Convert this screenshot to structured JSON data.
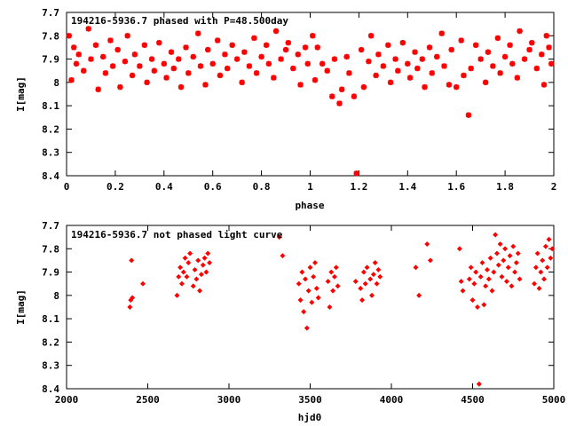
{
  "chart_data": [
    {
      "type": "scatter",
      "title": "194216-5936.7 phased with P=48.500day",
      "xlabel": "phase",
      "ylabel": "I[mag]",
      "xlim": [
        0,
        2
      ],
      "ylim": [
        7.7,
        8.4
      ],
      "y_inverted": true,
      "marker": "star",
      "grid": false,
      "color": "#ff0000",
      "x_ticks": [
        "0",
        "0.2",
        "0.4",
        "0.6",
        "0.8",
        "1",
        "1.2",
        "1.4",
        "1.6",
        "1.8",
        "2"
      ],
      "y_ticks": [
        "7.7",
        "7.8",
        "7.9",
        "8",
        "8.1",
        "8.2",
        "8.3",
        "8.4"
      ],
      "x_tick_values": [
        0,
        0.2,
        0.4,
        0.6,
        0.8,
        1,
        1.2,
        1.4,
        1.6,
        1.8,
        2
      ],
      "y_tick_values": [
        7.7,
        7.8,
        7.9,
        8.0,
        8.1,
        8.2,
        8.3,
        8.4
      ],
      "points": [
        [
          0.01,
          7.8
        ],
        [
          0.02,
          7.99
        ],
        [
          0.03,
          7.85
        ],
        [
          0.04,
          7.92
        ],
        [
          0.05,
          7.88
        ],
        [
          0.07,
          7.95
        ],
        [
          0.09,
          7.77
        ],
        [
          0.1,
          7.9
        ],
        [
          0.12,
          7.84
        ],
        [
          0.13,
          8.03
        ],
        [
          0.15,
          7.89
        ],
        [
          0.16,
          7.96
        ],
        [
          0.18,
          7.82
        ],
        [
          0.19,
          7.93
        ],
        [
          0.21,
          7.86
        ],
        [
          0.22,
          8.02
        ],
        [
          0.24,
          7.91
        ],
        [
          0.25,
          7.8
        ],
        [
          0.27,
          7.97
        ],
        [
          0.28,
          7.88
        ],
        [
          0.3,
          7.93
        ],
        [
          0.32,
          7.84
        ],
        [
          0.33,
          8.0
        ],
        [
          0.35,
          7.9
        ],
        [
          0.36,
          7.95
        ],
        [
          0.38,
          7.83
        ],
        [
          0.4,
          7.92
        ],
        [
          0.41,
          7.98
        ],
        [
          0.43,
          7.87
        ],
        [
          0.44,
          7.94
        ],
        [
          0.46,
          7.9
        ],
        [
          0.47,
          8.02
        ],
        [
          0.49,
          7.85
        ],
        [
          0.5,
          7.96
        ],
        [
          0.52,
          7.89
        ],
        [
          0.54,
          7.79
        ],
        [
          0.55,
          7.93
        ],
        [
          0.57,
          8.01
        ],
        [
          0.58,
          7.86
        ],
        [
          0.6,
          7.92
        ],
        [
          0.62,
          7.82
        ],
        [
          0.63,
          7.97
        ],
        [
          0.65,
          7.88
        ],
        [
          0.66,
          7.94
        ],
        [
          0.68,
          7.84
        ],
        [
          0.7,
          7.9
        ],
        [
          0.72,
          8.0
        ],
        [
          0.73,
          7.87
        ],
        [
          0.75,
          7.93
        ],
        [
          0.77,
          7.81
        ],
        [
          0.78,
          7.96
        ],
        [
          0.8,
          7.89
        ],
        [
          0.82,
          7.84
        ],
        [
          0.83,
          7.92
        ],
        [
          0.85,
          7.98
        ],
        [
          0.86,
          7.78
        ],
        [
          0.88,
          7.9
        ],
        [
          0.9,
          7.86
        ],
        [
          0.91,
          7.83
        ],
        [
          0.93,
          7.94
        ],
        [
          0.95,
          7.88
        ],
        [
          0.96,
          8.01
        ],
        [
          0.98,
          7.85
        ],
        [
          0.99,
          7.92
        ],
        [
          1.01,
          7.8
        ],
        [
          1.02,
          7.99
        ],
        [
          1.03,
          7.85
        ],
        [
          1.05,
          7.92
        ],
        [
          1.07,
          7.95
        ],
        [
          1.09,
          8.06
        ],
        [
          1.1,
          7.9
        ],
        [
          1.12,
          8.09
        ],
        [
          1.13,
          8.03
        ],
        [
          1.15,
          7.89
        ],
        [
          1.16,
          7.96
        ],
        [
          1.18,
          8.06
        ],
        [
          1.19,
          8.39
        ],
        [
          1.21,
          7.86
        ],
        [
          1.22,
          8.02
        ],
        [
          1.24,
          7.91
        ],
        [
          1.25,
          7.8
        ],
        [
          1.27,
          7.97
        ],
        [
          1.28,
          7.88
        ],
        [
          1.3,
          7.93
        ],
        [
          1.32,
          7.84
        ],
        [
          1.33,
          8.0
        ],
        [
          1.35,
          7.9
        ],
        [
          1.36,
          7.95
        ],
        [
          1.38,
          7.83
        ],
        [
          1.4,
          7.92
        ],
        [
          1.41,
          7.98
        ],
        [
          1.43,
          7.87
        ],
        [
          1.44,
          7.94
        ],
        [
          1.46,
          7.9
        ],
        [
          1.47,
          8.02
        ],
        [
          1.49,
          7.85
        ],
        [
          1.5,
          7.96
        ],
        [
          1.52,
          7.89
        ],
        [
          1.54,
          7.79
        ],
        [
          1.55,
          7.93
        ],
        [
          1.57,
          8.01
        ],
        [
          1.58,
          7.86
        ],
        [
          1.6,
          8.02
        ],
        [
          1.62,
          7.82
        ],
        [
          1.63,
          7.97
        ],
        [
          1.65,
          8.14
        ],
        [
          1.66,
          7.94
        ],
        [
          1.68,
          7.84
        ],
        [
          1.7,
          7.9
        ],
        [
          1.72,
          8.0
        ],
        [
          1.73,
          7.87
        ],
        [
          1.75,
          7.93
        ],
        [
          1.77,
          7.81
        ],
        [
          1.78,
          7.96
        ],
        [
          1.8,
          7.89
        ],
        [
          1.82,
          7.84
        ],
        [
          1.83,
          7.92
        ],
        [
          1.85,
          7.98
        ],
        [
          1.86,
          7.78
        ],
        [
          1.88,
          7.9
        ],
        [
          1.9,
          7.86
        ],
        [
          1.91,
          7.83
        ],
        [
          1.93,
          7.94
        ],
        [
          1.95,
          7.88
        ],
        [
          1.96,
          8.01
        ],
        [
          1.98,
          7.85
        ],
        [
          1.99,
          7.92
        ],
        [
          1.97,
          7.8
        ]
      ]
    },
    {
      "type": "scatter",
      "title": "194216-5936.7 not phased light curve",
      "xlabel": "hjd0",
      "ylabel": "I[mag]",
      "xlim": [
        2000,
        5000
      ],
      "ylim": [
        7.7,
        8.4
      ],
      "y_inverted": true,
      "marker": "diamond",
      "grid": false,
      "color": "#ff0000",
      "x_ticks": [
        "2000",
        "2500",
        "3000",
        "3500",
        "4000",
        "4500",
        "5000"
      ],
      "y_ticks": [
        "7.7",
        "7.8",
        "7.9",
        "8",
        "8.1",
        "8.2",
        "8.3",
        "8.4"
      ],
      "x_tick_values": [
        2000,
        2500,
        3000,
        3500,
        4000,
        4500,
        5000
      ],
      "y_tick_values": [
        7.7,
        7.8,
        7.9,
        8.0,
        8.1,
        8.2,
        8.3,
        8.4
      ],
      "points": [
        [
          2390,
          8.05
        ],
        [
          2395,
          8.02
        ],
        [
          2400,
          7.85
        ],
        [
          2405,
          8.01
        ],
        [
          2470,
          7.95
        ],
        [
          2680,
          8.0
        ],
        [
          2690,
          7.92
        ],
        [
          2700,
          7.88
        ],
        [
          2710,
          7.95
        ],
        [
          2720,
          7.9
        ],
        [
          2730,
          7.84
        ],
        [
          2740,
          7.92
        ],
        [
          2750,
          7.86
        ],
        [
          2760,
          7.82
        ],
        [
          2780,
          7.96
        ],
        [
          2790,
          7.89
        ],
        [
          2800,
          7.93
        ],
        [
          2810,
          7.85
        ],
        [
          2820,
          7.98
        ],
        [
          2830,
          7.91
        ],
        [
          2840,
          7.87
        ],
        [
          2850,
          7.84
        ],
        [
          2860,
          7.9
        ],
        [
          2870,
          7.82
        ],
        [
          2880,
          7.86
        ],
        [
          3310,
          7.75
        ],
        [
          3330,
          7.83
        ],
        [
          3430,
          7.95
        ],
        [
          3440,
          8.02
        ],
        [
          3450,
          7.9
        ],
        [
          3460,
          8.07
        ],
        [
          3470,
          7.93
        ],
        [
          3480,
          8.14
        ],
        [
          3490,
          7.98
        ],
        [
          3500,
          7.88
        ],
        [
          3510,
          8.03
        ],
        [
          3520,
          7.92
        ],
        [
          3530,
          7.86
        ],
        [
          3540,
          7.97
        ],
        [
          3550,
          8.01
        ],
        [
          3610,
          7.94
        ],
        [
          3620,
          8.05
        ],
        [
          3630,
          7.9
        ],
        [
          3640,
          7.98
        ],
        [
          3650,
          7.92
        ],
        [
          3660,
          7.88
        ],
        [
          3670,
          7.96
        ],
        [
          3780,
          7.94
        ],
        [
          3810,
          7.97
        ],
        [
          3820,
          8.02
        ],
        [
          3830,
          7.9
        ],
        [
          3840,
          7.95
        ],
        [
          3850,
          7.88
        ],
        [
          3870,
          7.93
        ],
        [
          3880,
          8.0
        ],
        [
          3890,
          7.91
        ],
        [
          3900,
          7.86
        ],
        [
          3910,
          7.95
        ],
        [
          3920,
          7.89
        ],
        [
          3930,
          7.92
        ],
        [
          4150,
          7.88
        ],
        [
          4170,
          8.0
        ],
        [
          4220,
          7.78
        ],
        [
          4240,
          7.85
        ],
        [
          4420,
          7.8
        ],
        [
          4430,
          7.94
        ],
        [
          4440,
          7.98
        ],
        [
          4480,
          7.93
        ],
        [
          4490,
          7.88
        ],
        [
          4500,
          8.02
        ],
        [
          4510,
          7.95
        ],
        [
          4520,
          7.9
        ],
        [
          4530,
          8.05
        ],
        [
          4540,
          8.38
        ],
        [
          4550,
          7.92
        ],
        [
          4560,
          7.86
        ],
        [
          4570,
          8.04
        ],
        [
          4580,
          7.96
        ],
        [
          4590,
          7.89
        ],
        [
          4600,
          7.93
        ],
        [
          4610,
          7.84
        ],
        [
          4620,
          7.98
        ],
        [
          4630,
          7.9
        ],
        [
          4640,
          7.74
        ],
        [
          4650,
          7.82
        ],
        [
          4660,
          7.87
        ],
        [
          4670,
          7.78
        ],
        [
          4680,
          7.92
        ],
        [
          4690,
          7.85
        ],
        [
          4700,
          7.8
        ],
        [
          4710,
          7.94
        ],
        [
          4720,
          7.88
        ],
        [
          4730,
          7.83
        ],
        [
          4740,
          7.96
        ],
        [
          4750,
          7.79
        ],
        [
          4760,
          7.9
        ],
        [
          4770,
          7.86
        ],
        [
          4780,
          7.82
        ],
        [
          4790,
          7.93
        ],
        [
          4880,
          7.95
        ],
        [
          4890,
          7.88
        ],
        [
          4900,
          7.82
        ],
        [
          4910,
          7.97
        ],
        [
          4920,
          7.9
        ],
        [
          4930,
          7.85
        ],
        [
          4940,
          7.93
        ],
        [
          4950,
          7.79
        ],
        [
          4960,
          7.88
        ],
        [
          4970,
          7.76
        ],
        [
          4980,
          7.84
        ],
        [
          4990,
          7.8
        ]
      ]
    }
  ]
}
